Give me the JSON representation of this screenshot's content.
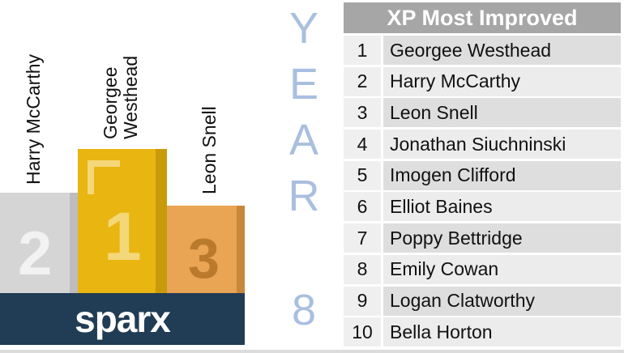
{
  "podium": {
    "second": {
      "name": "Harry McCarthy",
      "place": "2"
    },
    "first": {
      "name": "Georgee Westhead",
      "place": "1"
    },
    "third": {
      "name": "Leon Snell",
      "place": "3"
    },
    "colors": {
      "first": "#e8b511",
      "second": "#d5d5d5",
      "third": "#e9a454"
    }
  },
  "brand": {
    "logo": "sparx",
    "bg_color": "#213c55"
  },
  "year": {
    "letters": [
      "Y",
      "E",
      "A",
      "R"
    ],
    "number": "8",
    "color": "#a9bfe0"
  },
  "leaderboard": {
    "title": "XP Most Improved",
    "rows": [
      {
        "rank": "1",
        "name": "Georgee Westhead"
      },
      {
        "rank": "2",
        "name": "Harry McCarthy"
      },
      {
        "rank": "3",
        "name": "Leon Snell"
      },
      {
        "rank": "4",
        "name": "Jonathan Siuchninski"
      },
      {
        "rank": "5",
        "name": "Imogen Clifford"
      },
      {
        "rank": "6",
        "name": "Elliot Baines"
      },
      {
        "rank": "7",
        "name": "Poppy Bettridge"
      },
      {
        "rank": "8",
        "name": "Emily Cowan"
      },
      {
        "rank": "9",
        "name": "Logan Clatworthy"
      },
      {
        "rank": "10",
        "name": "Bella Horton"
      }
    ]
  }
}
